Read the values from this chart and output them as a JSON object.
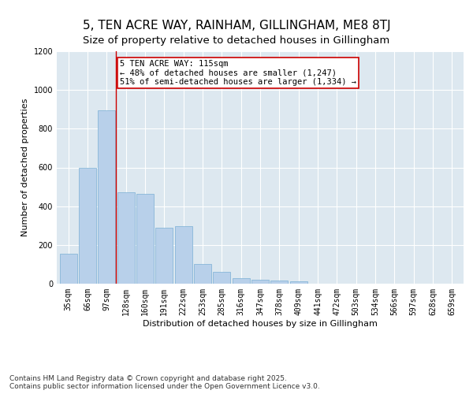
{
  "title": "5, TEN ACRE WAY, RAINHAM, GILLINGHAM, ME8 8TJ",
  "subtitle": "Size of property relative to detached houses in Gillingham",
  "xlabel": "Distribution of detached houses by size in Gillingham",
  "ylabel": "Number of detached properties",
  "categories": [
    "35sqm",
    "66sqm",
    "97sqm",
    "128sqm",
    "160sqm",
    "191sqm",
    "222sqm",
    "253sqm",
    "285sqm",
    "316sqm",
    "347sqm",
    "378sqm",
    "409sqm",
    "441sqm",
    "472sqm",
    "503sqm",
    "534sqm",
    "566sqm",
    "597sqm",
    "628sqm",
    "659sqm"
  ],
  "values": [
    155,
    600,
    895,
    470,
    465,
    290,
    295,
    100,
    62,
    27,
    20,
    18,
    12,
    0,
    0,
    0,
    0,
    0,
    0,
    0,
    0
  ],
  "bar_color": "#b8d0ea",
  "bar_edge_color": "#7aafd4",
  "vline_x": 2.5,
  "vline_color": "#cc0000",
  "annotation_text": "5 TEN ACRE WAY: 115sqm\n← 48% of detached houses are smaller (1,247)\n51% of semi-detached houses are larger (1,334) →",
  "annotation_box_color": "#ffffff",
  "annotation_box_edge": "#cc0000",
  "ylim": [
    0,
    1200
  ],
  "yticks": [
    0,
    200,
    400,
    600,
    800,
    1000,
    1200
  ],
  "background_color": "#dde8f0",
  "fig_background": "#ffffff",
  "footer": "Contains HM Land Registry data © Crown copyright and database right 2025.\nContains public sector information licensed under the Open Government Licence v3.0.",
  "title_fontsize": 11,
  "subtitle_fontsize": 9.5,
  "xlabel_fontsize": 8,
  "ylabel_fontsize": 8,
  "tick_fontsize": 7,
  "annotation_fontsize": 7.5,
  "footer_fontsize": 6.5
}
